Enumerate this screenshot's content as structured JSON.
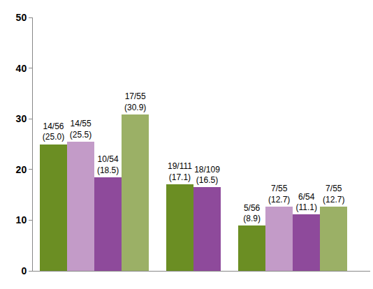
{
  "chart_data": {
    "type": "bar",
    "categories": [
      null,
      null,
      null
    ],
    "series": [
      {
        "color": "#6B8E23",
        "values": [
          25.0,
          17.1,
          8.9
        ],
        "value_labels": [
          "14/56\n(25.0)",
          "19/111\n(17.1)",
          "5/56\n(8.9)"
        ]
      },
      {
        "color": "#C39BC8",
        "values": [
          25.5,
          null,
          12.7
        ],
        "value_labels": [
          "14/55\n(25.5)",
          null,
          "7/55\n(12.7)"
        ]
      },
      {
        "color": "#8E4A9B",
        "values": [
          18.5,
          16.5,
          11.1
        ],
        "value_labels": [
          "10/54\n(18.5)",
          "18/109\n(16.5)",
          "6/54\n(11.1)"
        ]
      },
      {
        "color": "#9BB066",
        "values": [
          30.9,
          null,
          12.7
        ],
        "value_labels": [
          "17/55\n(30.9)",
          null,
          "7/55\n(12.7)"
        ]
      }
    ],
    "ylim": [
      0,
      50
    ],
    "yticks": [
      0,
      10,
      20,
      30,
      40,
      50
    ],
    "grid": false,
    "data_labels": true,
    "tick_labels": "y"
  }
}
